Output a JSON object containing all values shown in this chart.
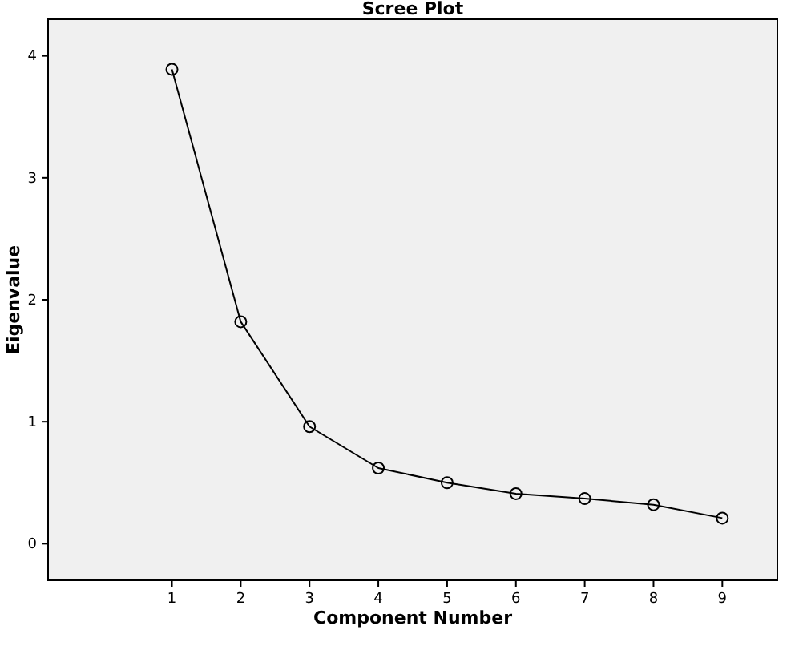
{
  "chart_data": {
    "type": "line",
    "title": "Scree Plot",
    "xlabel": "Component Number",
    "ylabel": "Eigenvalue",
    "x": [
      1,
      2,
      3,
      4,
      5,
      6,
      7,
      8,
      9
    ],
    "series": [
      {
        "color": "#000000",
        "values": [
          3.89,
          1.82,
          0.96,
          0.62,
          0.5,
          0.41,
          0.37,
          0.32,
          0.21
        ]
      }
    ],
    "xlim": [
      -0.8,
      9.8
    ],
    "xticks": [
      1,
      2,
      3,
      4,
      5,
      6,
      7,
      8,
      9
    ],
    "ylim": [
      -0.3,
      4.3
    ],
    "yticks": [
      0,
      1,
      2,
      3,
      4
    ],
    "grid": false,
    "marker": "circle",
    "line_style": "solid"
  }
}
